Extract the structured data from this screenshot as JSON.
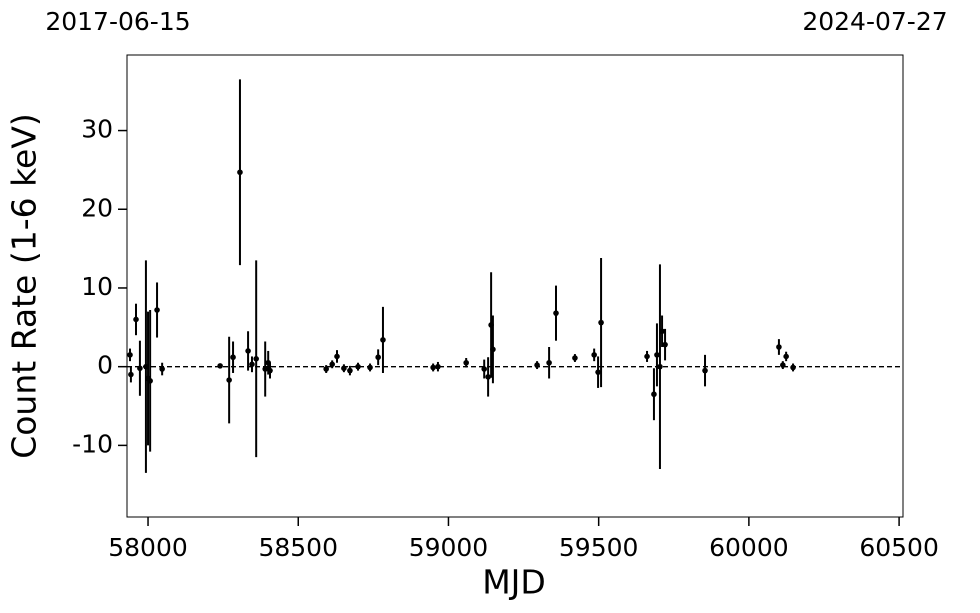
{
  "chart_data": {
    "type": "errorbar",
    "xlabel": "MJD",
    "ylabel": "Count Rate (1-6 keV)",
    "top_labels": [
      "2017-06-15",
      "2024-07-27"
    ],
    "xlim": [
      57930,
      60513
    ],
    "ylim": [
      -19.1,
      39.6
    ],
    "xticks": [
      58000,
      58500,
      59000,
      59500,
      60000,
      60500
    ],
    "yticks": [
      -10,
      0,
      10,
      20,
      30
    ],
    "hline": 0,
    "color": "#000000",
    "x": [
      57940,
      57943,
      57960,
      57973,
      57993,
      58000,
      58007,
      58030,
      58047,
      58240,
      58270,
      58283,
      58306,
      58333,
      58346,
      58360,
      58390,
      58400,
      58406,
      58593,
      58613,
      58629,
      58652,
      58672,
      58699,
      58739,
      58766,
      58782,
      58949,
      58965,
      59059,
      59119,
      59132,
      59142,
      59148,
      59295,
      59335,
      59358,
      59421,
      59485,
      59498,
      59508,
      59661,
      59684,
      59694,
      59704,
      59711,
      59721,
      59854,
      60100,
      60113,
      60124,
      60147
    ],
    "values": [
      1.5,
      -1.0,
      6.0,
      -0.2,
      0,
      -1.5,
      -1.8,
      7.2,
      -0.3,
      0.1,
      -1.7,
      1.2,
      24.7,
      2.0,
      0.3,
      1.0,
      -0.3,
      0.5,
      -0.5,
      -0.3,
      0.3,
      1.3,
      -0.2,
      -0.5,
      0.0,
      -0.1,
      1.2,
      3.4,
      -0.1,
      0.0,
      0.5,
      -0.3,
      -1.3,
      5.3,
      2.2,
      0.2,
      0.5,
      6.8,
      1.1,
      1.5,
      -0.7,
      5.6,
      1.3,
      -3.5,
      1.5,
      0,
      4.5,
      2.8,
      -0.5,
      2.5,
      0.2,
      1.3,
      -0.1
    ],
    "errors": [
      0.8,
      1,
      2,
      3.5,
      13.5,
      8.5,
      9,
      3.5,
      0.8,
      0.3,
      5.5,
      2,
      11.8,
      2.5,
      1,
      12.5,
      3.5,
      1.5,
      1,
      0.5,
      0.5,
      0.8,
      0.5,
      0.6,
      0.5,
      0.5,
      1,
      4.2,
      0.5,
      0.6,
      0.6,
      1.2,
      2.5,
      6.7,
      4.3,
      0.5,
      2,
      3.5,
      0.5,
      0.8,
      2,
      8.2,
      0.7,
      3.3,
      4,
      13,
      2,
      2,
      2,
      1,
      0.5,
      0.6,
      0.5
    ]
  }
}
